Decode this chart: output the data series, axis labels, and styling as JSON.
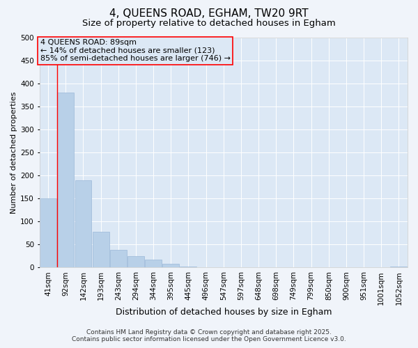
{
  "title": "4, QUEENS ROAD, EGHAM, TW20 9RT",
  "subtitle": "Size of property relative to detached houses in Egham",
  "xlabel": "Distribution of detached houses by size in Egham",
  "ylabel": "Number of detached properties",
  "categories": [
    "41sqm",
    "92sqm",
    "142sqm",
    "193sqm",
    "243sqm",
    "294sqm",
    "344sqm",
    "395sqm",
    "445sqm",
    "496sqm",
    "547sqm",
    "597sqm",
    "648sqm",
    "698sqm",
    "749sqm",
    "799sqm",
    "850sqm",
    "900sqm",
    "951sqm",
    "1001sqm",
    "1052sqm"
  ],
  "values": [
    150,
    380,
    190,
    78,
    38,
    25,
    17,
    8,
    2,
    0,
    0,
    0,
    0,
    0,
    0,
    0,
    0,
    0,
    0,
    0,
    2
  ],
  "bar_color": "#b8d0e8",
  "bar_edge_color": "#9ab8d8",
  "ylim": [
    0,
    500
  ],
  "yticks": [
    0,
    50,
    100,
    150,
    200,
    250,
    300,
    350,
    400,
    450,
    500
  ],
  "plot_bg_color": "#dce8f5",
  "fig_bg_color": "#f0f4fa",
  "grid_color": "#ffffff",
  "annotation_text_line1": "4 QUEENS ROAD: 89sqm",
  "annotation_text_line2": "← 14% of detached houses are smaller (123)",
  "annotation_text_line3": "85% of semi-detached houses are larger (746) →",
  "vline_x": 1,
  "footer_line1": "Contains HM Land Registry data © Crown copyright and database right 2025.",
  "footer_line2": "Contains public sector information licensed under the Open Government Licence v3.0.",
  "title_fontsize": 11,
  "subtitle_fontsize": 9.5,
  "xlabel_fontsize": 9,
  "ylabel_fontsize": 8,
  "tick_fontsize": 7.5,
  "annotation_fontsize": 8,
  "footer_fontsize": 6.5
}
